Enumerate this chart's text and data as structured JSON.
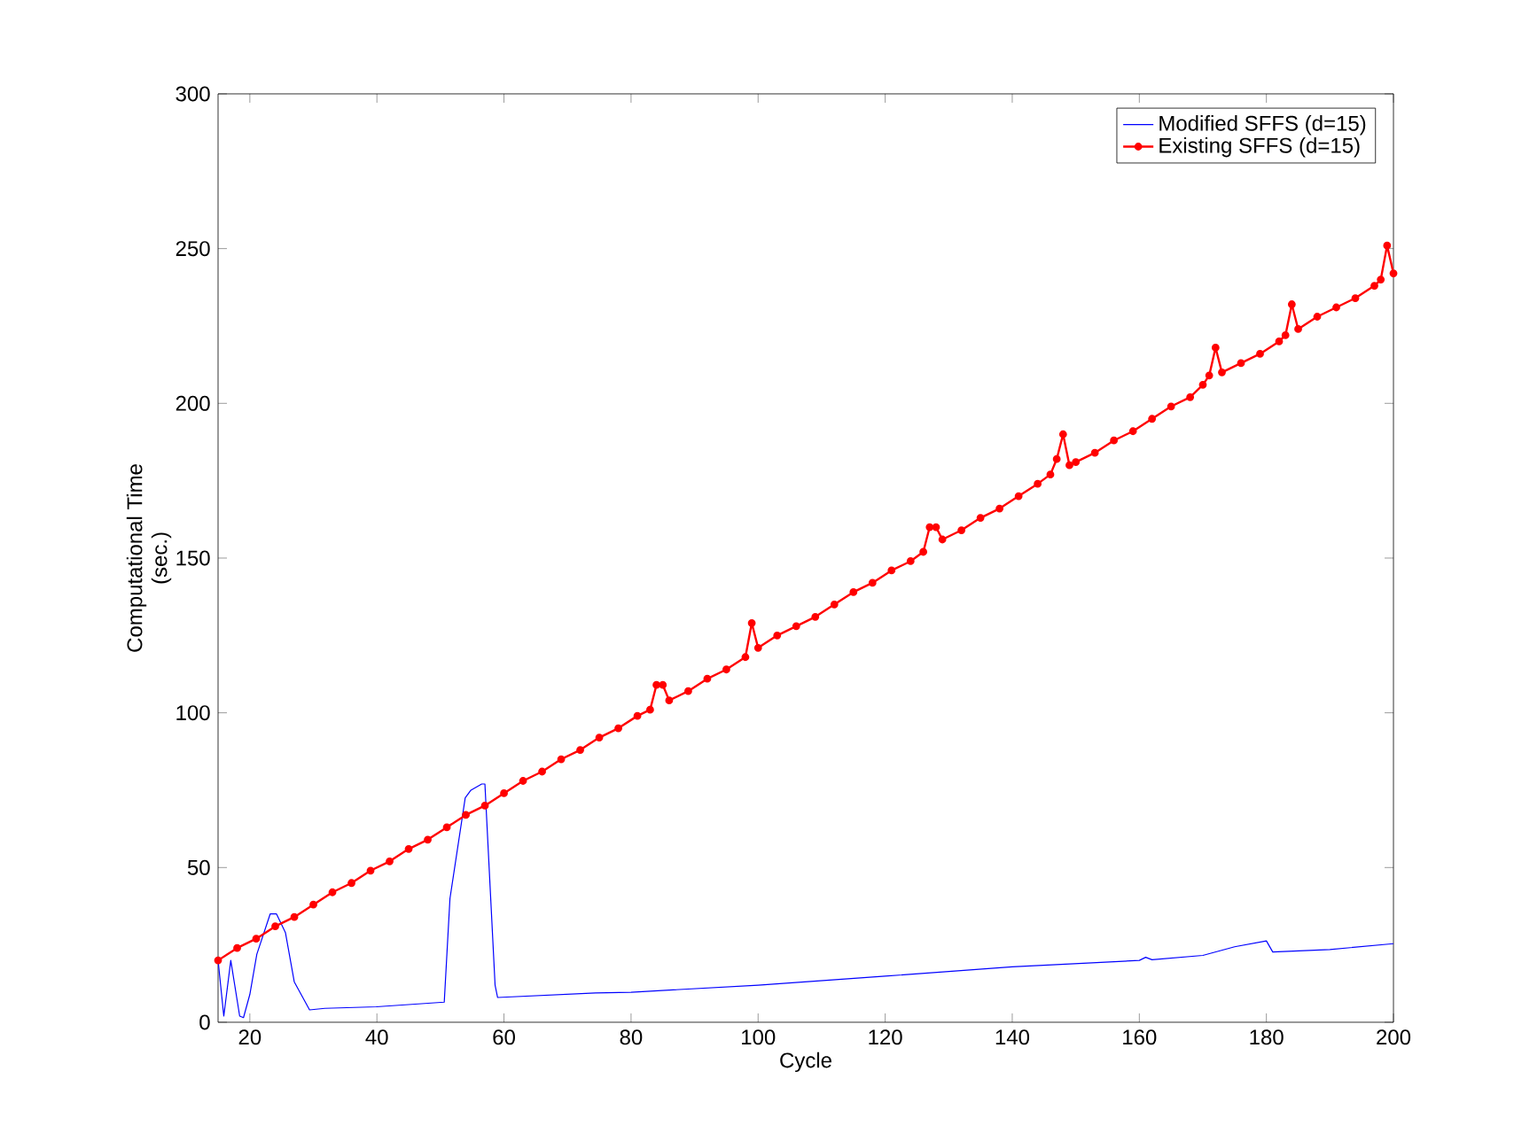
{
  "chart_data": {
    "type": "line",
    "xlabel": "Cycle",
    "ylabel": "Computational Time\n(sec.)",
    "xlim": [
      15,
      200
    ],
    "ylim": [
      0,
      300
    ],
    "xticks": [
      20,
      40,
      60,
      80,
      100,
      120,
      140,
      160,
      180,
      200
    ],
    "yticks": [
      0,
      50,
      100,
      150,
      200,
      250,
      300
    ],
    "grid": false,
    "legend": "top right",
    "series": [
      {
        "name": "Modified SFFS (d=15)",
        "color": "#0000ff",
        "marker": "none",
        "x": [
          15,
          15.9,
          17,
          18.4,
          19,
          20,
          21.1,
          23.2,
          24.2,
          25.6,
          27,
          29.4,
          31.8,
          39.9,
          50.6,
          51.5,
          53.9,
          54.8,
          56.5,
          57,
          58.6,
          59,
          74.4,
          80,
          100,
          120,
          140,
          160,
          161,
          162,
          170,
          175,
          180,
          181,
          190,
          200
        ],
        "values": [
          20,
          2,
          20,
          2,
          1.5,
          9,
          22,
          35,
          35,
          29,
          13,
          4,
          4.5,
          5,
          6.5,
          40,
          72.5,
          75,
          77,
          77,
          12,
          8,
          9.5,
          9.7,
          12,
          14.9,
          17.9,
          20,
          21,
          20.2,
          21.6,
          24.4,
          26.3,
          22.7,
          23.5,
          25.4
        ]
      },
      {
        "name": "Existing SFFS (d=15)",
        "color": "#ff0000",
        "marker": "circle",
        "x": [
          15,
          18,
          21,
          24,
          27,
          30,
          33,
          36,
          39,
          42,
          45,
          48,
          51,
          54,
          57,
          60,
          63,
          66,
          69,
          72,
          75,
          78,
          81,
          83,
          84,
          85,
          86,
          89,
          92,
          95,
          98,
          99,
          100,
          103,
          106,
          109,
          112,
          115,
          118,
          121,
          124,
          126,
          127,
          128,
          129,
          132,
          135,
          138,
          141,
          144,
          146,
          147,
          148,
          149,
          150,
          153,
          156,
          159,
          162,
          165,
          168,
          170,
          171,
          172,
          173,
          176,
          179,
          182,
          183,
          184,
          185,
          188,
          191,
          194,
          197,
          198,
          199,
          200
        ],
        "values": [
          20,
          24,
          27,
          31,
          34,
          38,
          42,
          45,
          49,
          52,
          56,
          59,
          63,
          67,
          70,
          74,
          78,
          81,
          85,
          88,
          92,
          95,
          99,
          101,
          109,
          109,
          104,
          107,
          111,
          114,
          118,
          129,
          121,
          125,
          128,
          131,
          135,
          139,
          142,
          146,
          149,
          152,
          160,
          160,
          156,
          159,
          163,
          166,
          170,
          174,
          177,
          182,
          190,
          180,
          181,
          184,
          188,
          191,
          195,
          199,
          202,
          206,
          209,
          218,
          210,
          213,
          216,
          220,
          222,
          232,
          224,
          228,
          231,
          234,
          238,
          240,
          251,
          242
        ]
      }
    ]
  }
}
